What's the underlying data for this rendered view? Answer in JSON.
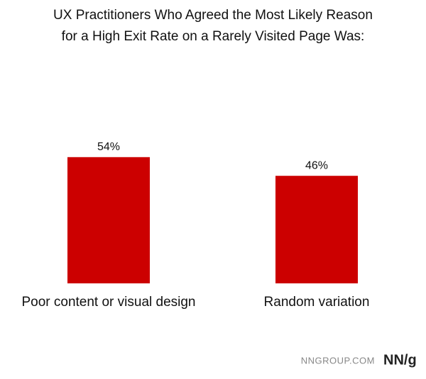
{
  "chart_data": {
    "type": "bar",
    "title": [
      "UX Practitioners Who Agreed the Most Likely Reason",
      "for a High Exit Rate on a Rarely Visited Page Was:"
    ],
    "categories": [
      "Poor content or visual design",
      "Random variation"
    ],
    "values": [
      54,
      46
    ],
    "value_labels": [
      "54%",
      "46%"
    ],
    "color": "#cc0000",
    "source": "NNGROUP.COM",
    "logo": "NN/g"
  }
}
